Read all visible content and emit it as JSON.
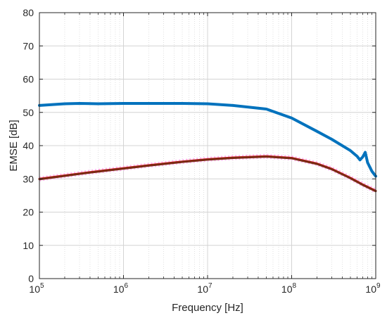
{
  "chart_data": {
    "type": "line",
    "xlabel": "Frequency [Hz]",
    "ylabel": "EMSE [dB]",
    "xscale": "log",
    "xlim": [
      100000,
      1000000000
    ],
    "ylim": [
      0,
      80
    ],
    "grid": true,
    "minor_grid": true,
    "x_tick_labels": [
      {
        "base": "10",
        "exp": "5"
      },
      {
        "base": "10",
        "exp": "6"
      },
      {
        "base": "10",
        "exp": "7"
      },
      {
        "base": "10",
        "exp": "8"
      },
      {
        "base": "10",
        "exp": "9"
      }
    ],
    "y_ticks": [
      0,
      10,
      20,
      30,
      40,
      50,
      60,
      70,
      80
    ],
    "series": [
      {
        "color": "#0072BD",
        "style": "solid",
        "x": [
          100000,
          200000,
          300000,
          500000,
          1000000,
          2000000,
          5000000,
          10000000,
          20000000,
          50000000,
          100000000,
          200000000,
          300000000,
          500000000,
          600000000,
          650000000,
          700000000,
          750000000,
          800000000,
          900000000,
          1000000000
        ],
        "y": [
          52.1,
          52.6,
          52.7,
          52.6,
          52.7,
          52.7,
          52.7,
          52.6,
          52.1,
          51.0,
          48.3,
          44.3,
          41.9,
          38.5,
          36.8,
          35.7,
          36.6,
          38.0,
          34.9,
          32.3,
          30.8
        ]
      },
      {
        "color": "#FFB3F2",
        "style": "dotted",
        "x": [
          100000,
          200000,
          300000,
          500000,
          1000000,
          2000000,
          5000000,
          10000000,
          20000000,
          50000000,
          100000000,
          200000000,
          300000000,
          500000000,
          700000000,
          1000000000
        ],
        "y": [
          30.0,
          31.0,
          31.6,
          32.3,
          33.2,
          34.1,
          35.2,
          35.9,
          36.4,
          36.8,
          36.3,
          34.6,
          33.0,
          30.3,
          28.3,
          26.4
        ]
      },
      {
        "color": "#E8141B",
        "style": "solid",
        "x": [
          100000,
          200000,
          300000,
          500000,
          1000000,
          2000000,
          5000000,
          10000000,
          20000000,
          50000000,
          100000000,
          200000000,
          300000000,
          500000000,
          700000000,
          1000000000
        ],
        "y": [
          30.0,
          31.0,
          31.6,
          32.3,
          33.2,
          34.1,
          35.2,
          35.9,
          36.4,
          36.8,
          36.3,
          34.6,
          33.0,
          30.3,
          28.3,
          26.4
        ]
      },
      {
        "color": "#7B2A14",
        "style": "solid",
        "x": [
          100000,
          200000,
          300000,
          500000,
          1000000,
          2000000,
          5000000,
          10000000,
          20000000,
          50000000,
          100000000,
          200000000,
          300000000,
          500000000,
          700000000,
          1000000000
        ],
        "y": [
          29.9,
          30.9,
          31.5,
          32.2,
          33.1,
          34.0,
          35.1,
          35.8,
          36.3,
          36.7,
          36.2,
          34.5,
          32.9,
          30.2,
          28.2,
          26.3
        ]
      }
    ]
  }
}
